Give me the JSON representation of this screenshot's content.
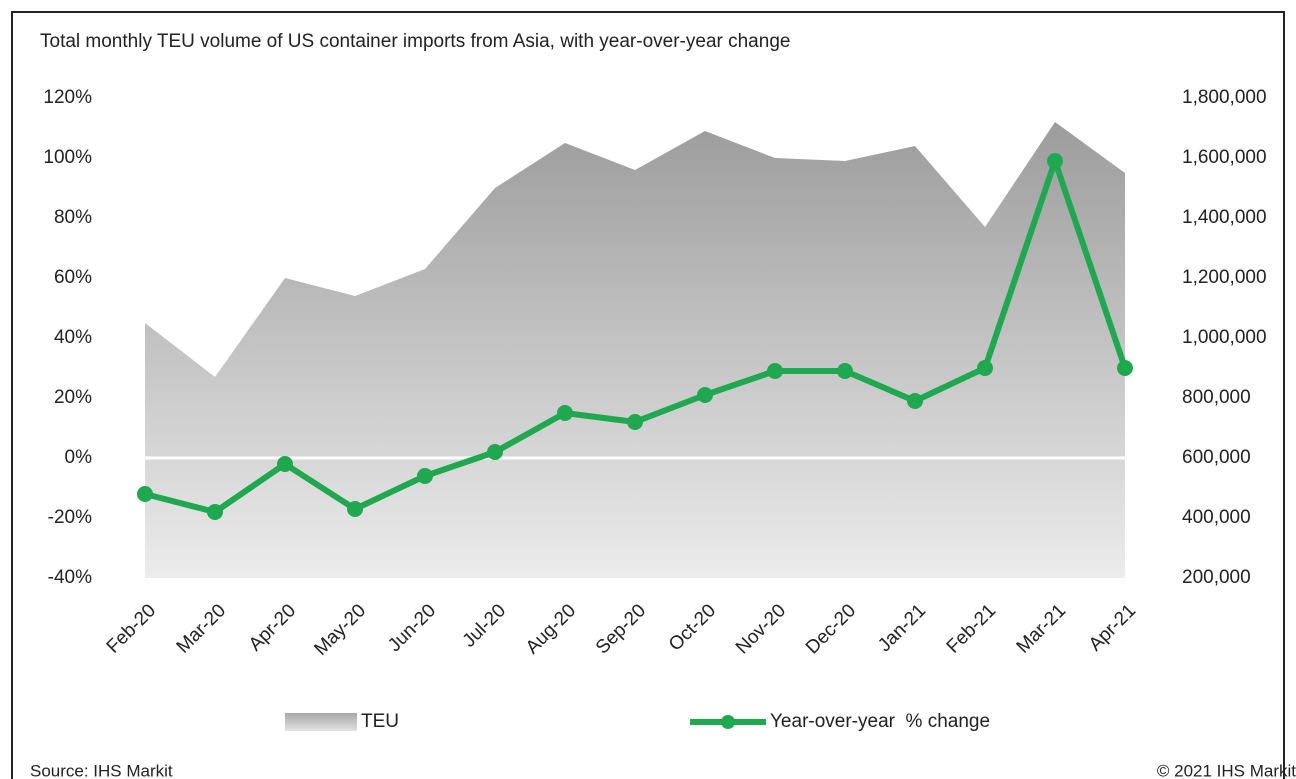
{
  "chart_data": {
    "type": "area-line",
    "title": "Total monthly TEU volume of US container imports from Asia, with year-over-year change",
    "categories": [
      "Feb-20",
      "Mar-20",
      "Apr-20",
      "May-20",
      "Jun-20",
      "Jul-20",
      "Aug-20",
      "Sep-20",
      "Oct-20",
      "Nov-20",
      "Dec-20",
      "Jan-21",
      "Feb-21",
      "Mar-21",
      "Apr-21"
    ],
    "series": [
      {
        "name": "TEU",
        "kind": "area",
        "axis": "y2",
        "color": "#a6a6a6",
        "values": [
          1050000,
          870000,
          1200000,
          1140000,
          1230000,
          1500000,
          1650000,
          1560000,
          1690000,
          1600000,
          1590000,
          1640000,
          1370000,
          1720000,
          1550000
        ]
      },
      {
        "name": "Year-over-year  % change",
        "kind": "line",
        "axis": "y",
        "color": "#1fa84f",
        "values": [
          -12,
          -18,
          -2,
          -17,
          -6,
          2,
          15,
          12,
          21,
          29,
          29,
          19,
          30,
          99,
          30
        ]
      }
    ],
    "ylim": [
      -40,
      120
    ],
    "yticks": [
      {
        "value": -40,
        "label": "-40%"
      },
      {
        "value": -20,
        "label": "-20%"
      },
      {
        "value": 0,
        "label": "0%"
      },
      {
        "value": 20,
        "label": "20%"
      },
      {
        "value": 40,
        "label": "40%"
      },
      {
        "value": 60,
        "label": "60%"
      },
      {
        "value": 80,
        "label": "80%"
      },
      {
        "value": 100,
        "label": "100%"
      },
      {
        "value": 120,
        "label": "120%"
      }
    ],
    "y2lim": [
      200000,
      1800000
    ],
    "y2ticks": [
      {
        "value": 200000,
        "label": "200,000"
      },
      {
        "value": 400000,
        "label": "400,000"
      },
      {
        "value": 600000,
        "label": "600,000"
      },
      {
        "value": 800000,
        "label": "800,000"
      },
      {
        "value": 1000000,
        "label": "1,000,000"
      },
      {
        "value": 1200000,
        "label": "1,200,000"
      },
      {
        "value": 1400000,
        "label": "1,400,000"
      },
      {
        "value": 1600000,
        "label": "1,600,000"
      },
      {
        "value": 1800000,
        "label": "1,800,000"
      }
    ],
    "source": "Source: IHS Markit",
    "copyright": "© 2021 IHS Markit"
  }
}
